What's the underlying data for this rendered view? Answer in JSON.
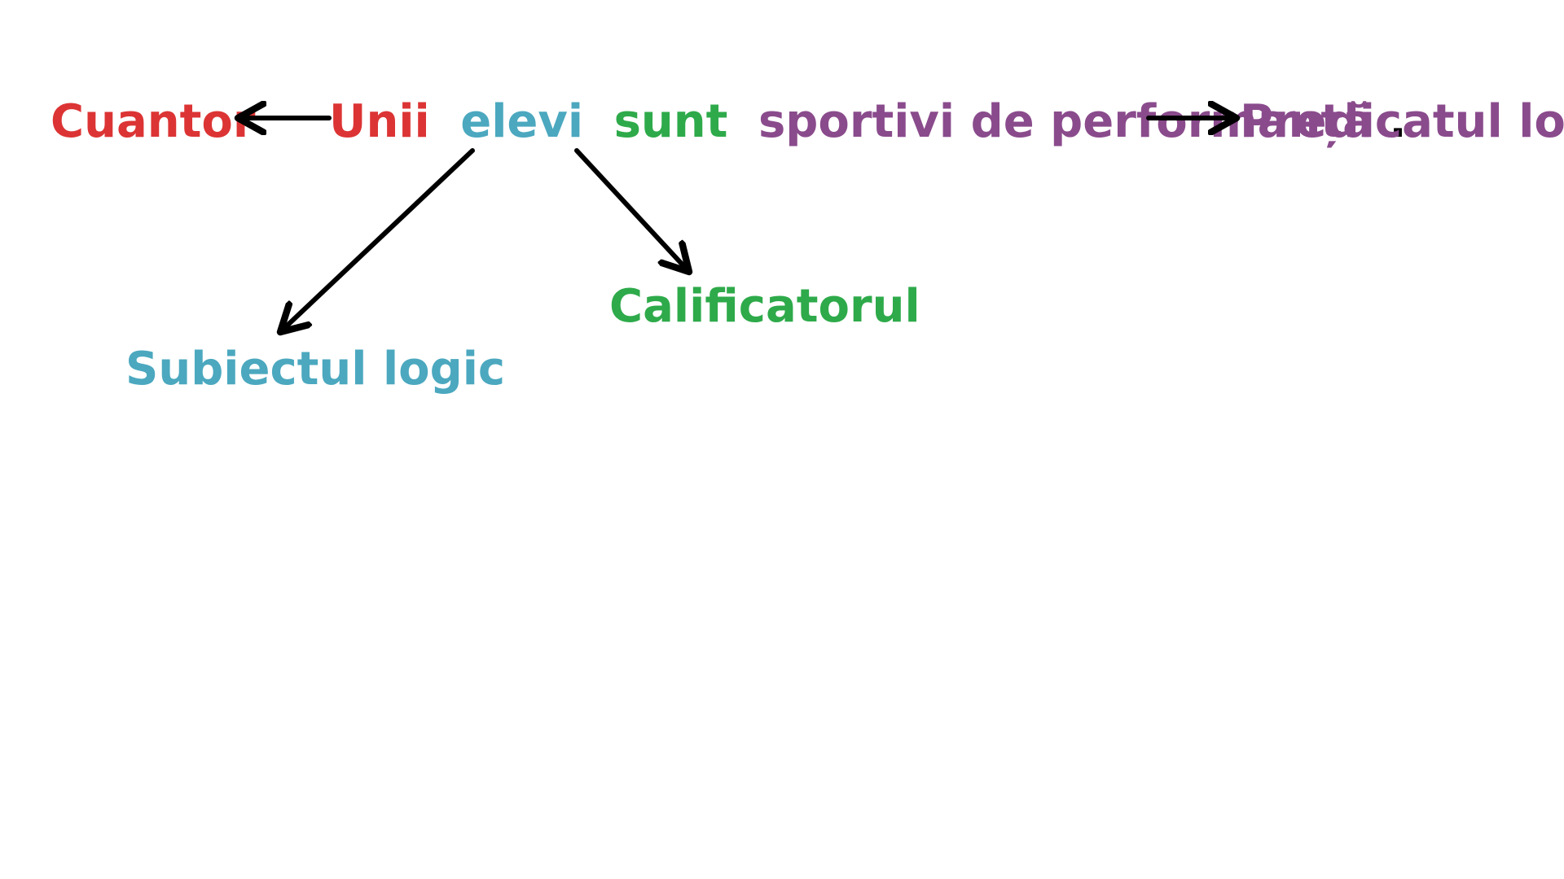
{
  "colors": {
    "quantifier": "#dc3434",
    "subject": "#4ba8bf",
    "qualifier": "#2eaa4a",
    "predicate": "#8a4b8c",
    "arrow": "#000000"
  },
  "sentence": {
    "quantifier_word": "Unii",
    "subject_word": "elevi",
    "qualifier_word": "sunt",
    "predicate_words": "sportivi de performanță",
    "period": "."
  },
  "labels": {
    "quantifier": "Cuantor",
    "subject": "Subiectul logic",
    "qualifier": "Calificatorul",
    "predicate": "Predicatul logic"
  }
}
